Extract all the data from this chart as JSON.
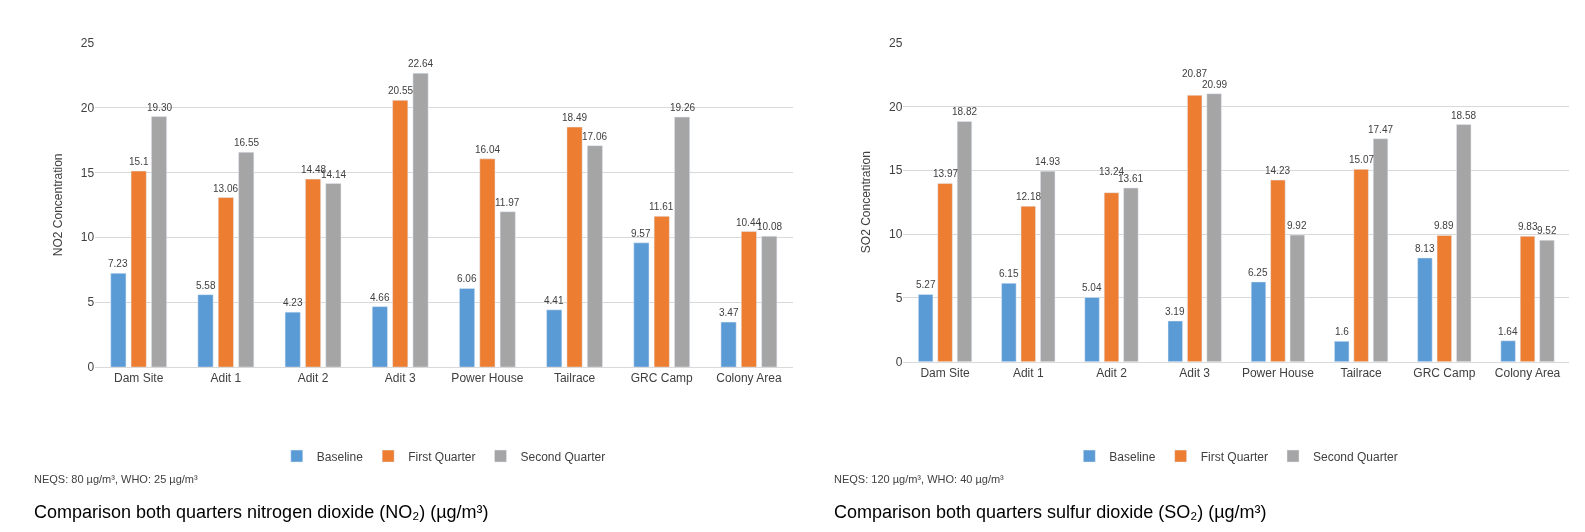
{
  "chart_data": [
    {
      "type": "bar",
      "ylabel": "NO2 Concentration",
      "categories": [
        "Dam Site",
        "Adit 1",
        "Adit 2",
        "Adit 3",
        "Power House",
        "Tailrace",
        "GRC Camp",
        "Colony Area"
      ],
      "series": [
        {
          "name": "Baseline",
          "color": "#5b9bd5",
          "values": [
            7.23,
            5.58,
            4.23,
            4.66,
            6.06,
            4.41,
            9.57,
            3.47
          ],
          "value_labels": [
            "7.23",
            "5.58",
            "4.23",
            "4.66",
            "6.06",
            "4.41",
            "9.57",
            "3.47"
          ]
        },
        {
          "name": "First Quarter",
          "color": "#ed7d31",
          "values": [
            15.1,
            13.06,
            14.48,
            20.55,
            16.04,
            18.49,
            11.61,
            10.44
          ],
          "value_labels": [
            "15.1",
            "13.06",
            "14.48",
            "20.55",
            "16.04",
            "18.49",
            "11.61",
            "10.44"
          ]
        },
        {
          "name": "Second Quarter",
          "color": "#a5a5a5",
          "values": [
            19.3,
            16.55,
            14.14,
            22.64,
            11.97,
            17.06,
            19.26,
            10.08
          ],
          "value_labels": [
            "19.30",
            "16.55",
            "14.14",
            "22.64",
            "11.97",
            "17.06",
            "19.26",
            "10.08"
          ]
        }
      ],
      "ylim": [
        0,
        25
      ],
      "yticks": [
        0,
        5,
        10,
        15,
        20,
        25
      ],
      "grid": "y",
      "legend": "bottom",
      "annotations": [
        "NEQS: 80 µg/m³, WHO: 25 µg/m³",
        "Comparison both quarters nitrogen dioxide (NO₂) (µg/m³)"
      ]
    },
    {
      "type": "bar",
      "ylabel": "SO2 Concentration",
      "categories": [
        "Dam Site",
        "Adit 1",
        "Adit 2",
        "Adit 3",
        "Power House",
        "Tailrace",
        "GRC Camp",
        "Colony Area"
      ],
      "series": [
        {
          "name": "Baseline",
          "color": "#5b9bd5",
          "values": [
            5.27,
            6.15,
            5.04,
            3.19,
            6.25,
            1.6,
            8.13,
            1.64
          ],
          "value_labels": [
            "5.27",
            "6.15",
            "5.04",
            "3.19",
            "6.25",
            "1.6",
            "8.13",
            "1.64"
          ]
        },
        {
          "name": "First Quarter",
          "color": "#ed7d31",
          "values": [
            13.97,
            12.18,
            13.24,
            20.87,
            14.23,
            15.07,
            9.89,
            9.83
          ],
          "value_labels": [
            "13.97",
            "12.18",
            "13.24",
            "20.87",
            "14.23",
            "15.07",
            "9.89",
            "9.83"
          ]
        },
        {
          "name": "Second Quarter",
          "color": "#a5a5a5",
          "values": [
            18.82,
            14.93,
            13.61,
            20.99,
            9.92,
            17.47,
            18.58,
            9.52
          ],
          "value_labels": [
            "18.82",
            "14.93",
            "13.61",
            "20.99",
            "9.92",
            "17.47",
            "18.58",
            "9.52"
          ]
        }
      ],
      "ylim": [
        0,
        25
      ],
      "yticks": [
        0,
        5,
        10,
        15,
        20,
        25
      ],
      "grid": "y",
      "legend": "bottom",
      "annotations": [
        "NEQS: 120 µg/m³, WHO: 40 µg/m³",
        "Comparison both quarters sulfur dioxide (SO₂) (µg/m³)"
      ]
    }
  ]
}
